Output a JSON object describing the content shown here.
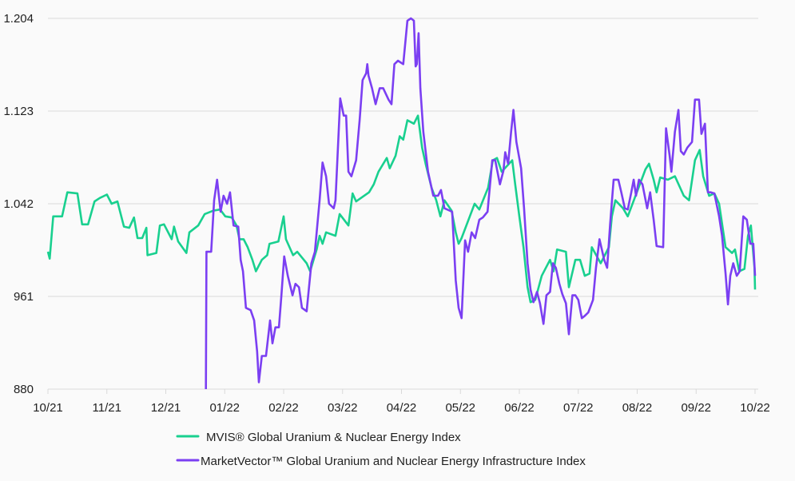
{
  "chart_data": {
    "type": "line",
    "title": "",
    "xlabel": "",
    "ylabel": "",
    "x_unit": "months since 10/21",
    "xlim": [
      0,
      12
    ],
    "ylim": [
      880,
      1204
    ],
    "grid": "horizontal",
    "legend_placement": "bottom-center",
    "x_tick_labels": [
      "10/21",
      "11/21",
      "12/21",
      "01/22",
      "02/22",
      "03/22",
      "04/22",
      "05/22",
      "06/22",
      "07/22",
      "08/22",
      "09/22",
      "10/22"
    ],
    "y_ticks": [
      {
        "value": 880,
        "label": "880"
      },
      {
        "value": 961,
        "label": "961"
      },
      {
        "value": 1042,
        "label": "1.042"
      },
      {
        "value": 1123,
        "label": "1.123"
      },
      {
        "value": 1204,
        "label": "1.204"
      }
    ],
    "series": [
      {
        "name": "MVIS® Global Uranium & Nuclear Energy Index",
        "color": "#19d08f",
        "points": [
          [
            0,
            1000
          ],
          [
            0.03,
            994
          ],
          [
            0.09,
            1031
          ],
          [
            0.24,
            1031
          ],
          [
            0.33,
            1052
          ],
          [
            0.5,
            1051
          ],
          [
            0.58,
            1024
          ],
          [
            0.68,
            1024
          ],
          [
            0.79,
            1044
          ],
          [
            0.88,
            1047
          ],
          [
            1.0,
            1050
          ],
          [
            1.08,
            1042
          ],
          [
            1.18,
            1044
          ],
          [
            1.29,
            1022
          ],
          [
            1.38,
            1021
          ],
          [
            1.46,
            1030
          ],
          [
            1.52,
            1012
          ],
          [
            1.6,
            1012
          ],
          [
            1.67,
            1021
          ],
          [
            1.69,
            997
          ],
          [
            1.84,
            999
          ],
          [
            1.9,
            1023
          ],
          [
            1.97,
            1024
          ],
          [
            2.1,
            1011
          ],
          [
            2.14,
            1022
          ],
          [
            2.21,
            1009
          ],
          [
            2.35,
            999
          ],
          [
            2.4,
            1017
          ],
          [
            2.55,
            1023
          ],
          [
            2.66,
            1033
          ],
          [
            2.81,
            1036
          ],
          [
            2.92,
            1037
          ],
          [
            3.01,
            1031
          ],
          [
            3.12,
            1030
          ],
          [
            3.2,
            1023
          ],
          [
            3.25,
            1011
          ],
          [
            3.32,
            1011
          ],
          [
            3.39,
            1004
          ],
          [
            3.47,
            993
          ],
          [
            3.53,
            983
          ],
          [
            3.63,
            993
          ],
          [
            3.72,
            997
          ],
          [
            3.76,
            1007
          ],
          [
            3.91,
            1009
          ],
          [
            4.0,
            1031
          ],
          [
            4.04,
            1011
          ],
          [
            4.16,
            997
          ],
          [
            4.23,
            1000
          ],
          [
            4.39,
            990
          ],
          [
            4.45,
            983
          ],
          [
            4.56,
            1002
          ],
          [
            4.61,
            1014
          ],
          [
            4.66,
            1007
          ],
          [
            4.72,
            1017
          ],
          [
            4.88,
            1014
          ],
          [
            4.95,
            1033
          ],
          [
            5.1,
            1023
          ],
          [
            5.17,
            1051
          ],
          [
            5.23,
            1044
          ],
          [
            5.45,
            1052
          ],
          [
            5.53,
            1059
          ],
          [
            5.61,
            1070
          ],
          [
            5.75,
            1082
          ],
          [
            5.8,
            1073
          ],
          [
            5.9,
            1084
          ],
          [
            5.97,
            1101
          ],
          [
            6.03,
            1098
          ],
          [
            6.1,
            1115
          ],
          [
            6.21,
            1112
          ],
          [
            6.28,
            1119
          ],
          [
            6.35,
            1091
          ],
          [
            6.41,
            1077
          ],
          [
            6.51,
            1056
          ],
          [
            6.59,
            1045
          ],
          [
            6.66,
            1031
          ],
          [
            6.73,
            1045
          ],
          [
            6.85,
            1036
          ],
          [
            6.92,
            1017
          ],
          [
            6.97,
            1007
          ],
          [
            7.02,
            1012
          ],
          [
            7.16,
            1031
          ],
          [
            7.24,
            1042
          ],
          [
            7.32,
            1037
          ],
          [
            7.47,
            1056
          ],
          [
            7.55,
            1080
          ],
          [
            7.62,
            1082
          ],
          [
            7.7,
            1070
          ],
          [
            7.88,
            1080
          ],
          [
            7.93,
            1059
          ],
          [
            8.0,
            1031
          ],
          [
            8.07,
            1004
          ],
          [
            8.14,
            969
          ],
          [
            8.19,
            956
          ],
          [
            8.27,
            958
          ],
          [
            8.38,
            979
          ],
          [
            8.52,
            993
          ],
          [
            8.58,
            983
          ],
          [
            8.64,
            1002
          ],
          [
            8.79,
            1000
          ],
          [
            8.84,
            969
          ],
          [
            8.95,
            993
          ],
          [
            9.03,
            993
          ],
          [
            9.11,
            979
          ],
          [
            9.19,
            981
          ],
          [
            9.23,
            1004
          ],
          [
            9.38,
            990
          ],
          [
            9.52,
            1004
          ],
          [
            9.57,
            1031
          ],
          [
            9.63,
            1045
          ],
          [
            9.76,
            1038
          ],
          [
            9.84,
            1031
          ],
          [
            9.98,
            1050
          ],
          [
            10.14,
            1072
          ],
          [
            10.2,
            1077
          ],
          [
            10.28,
            1063
          ],
          [
            10.33,
            1052
          ],
          [
            10.39,
            1065
          ],
          [
            10.52,
            1063
          ],
          [
            10.64,
            1066
          ],
          [
            10.79,
            1049
          ],
          [
            10.88,
            1045
          ],
          [
            10.98,
            1080
          ],
          [
            11.06,
            1089
          ],
          [
            11.12,
            1066
          ],
          [
            11.22,
            1049
          ],
          [
            11.31,
            1051
          ],
          [
            11.39,
            1042
          ],
          [
            11.5,
            1004
          ],
          [
            11.61,
            999
          ],
          [
            11.66,
            1002
          ],
          [
            11.73,
            983
          ],
          [
            11.82,
            985
          ],
          [
            11.88,
            1014
          ],
          [
            11.93,
            1023
          ],
          [
            11.99,
            986
          ],
          [
            12.0,
            967
          ]
        ]
      },
      {
        "name": "MarketVector™ Global Uranium and Nuclear Energy Infrastructure Index",
        "color": "#7b3ff2",
        "points": [
          [
            2.68,
            880
          ],
          [
            2.69,
            1000
          ],
          [
            2.77,
            1000
          ],
          [
            2.82,
            1045
          ],
          [
            2.87,
            1063
          ],
          [
            2.93,
            1035
          ],
          [
            2.98,
            1049
          ],
          [
            3.04,
            1042
          ],
          [
            3.09,
            1052
          ],
          [
            3.15,
            1023
          ],
          [
            3.23,
            1022
          ],
          [
            3.27,
            993
          ],
          [
            3.31,
            983
          ],
          [
            3.36,
            951
          ],
          [
            3.44,
            949
          ],
          [
            3.5,
            940
          ],
          [
            3.55,
            913
          ],
          [
            3.58,
            886
          ],
          [
            3.63,
            909
          ],
          [
            3.7,
            909
          ],
          [
            3.77,
            940
          ],
          [
            3.81,
            920
          ],
          [
            3.86,
            934
          ],
          [
            3.92,
            934
          ],
          [
            3.96,
            961
          ],
          [
            4.01,
            996
          ],
          [
            4.07,
            979
          ],
          [
            4.15,
            962
          ],
          [
            4.2,
            972
          ],
          [
            4.26,
            969
          ],
          [
            4.31,
            951
          ],
          [
            4.39,
            948
          ],
          [
            4.47,
            990
          ],
          [
            4.53,
            1000
          ],
          [
            4.61,
            1045
          ],
          [
            4.66,
            1078
          ],
          [
            4.72,
            1066
          ],
          [
            4.77,
            1042
          ],
          [
            4.85,
            1038
          ],
          [
            4.88,
            1045
          ],
          [
            4.96,
            1134
          ],
          [
            5.02,
            1119
          ],
          [
            5.06,
            1119
          ],
          [
            5.1,
            1070
          ],
          [
            5.15,
            1066
          ],
          [
            5.23,
            1080
          ],
          [
            5.29,
            1115
          ],
          [
            5.34,
            1150
          ],
          [
            5.4,
            1156
          ],
          [
            5.42,
            1164
          ],
          [
            5.44,
            1154
          ],
          [
            5.5,
            1143
          ],
          [
            5.56,
            1129
          ],
          [
            5.63,
            1143
          ],
          [
            5.69,
            1143
          ],
          [
            5.78,
            1133
          ],
          [
            5.83,
            1129
          ],
          [
            5.88,
            1164
          ],
          [
            5.94,
            1167
          ],
          [
            6.03,
            1164
          ],
          [
            6.1,
            1202
          ],
          [
            6.16,
            1204
          ],
          [
            6.21,
            1202
          ],
          [
            6.24,
            1162
          ],
          [
            6.26,
            1164
          ],
          [
            6.29,
            1191
          ],
          [
            6.32,
            1143
          ],
          [
            6.37,
            1105
          ],
          [
            6.45,
            1070
          ],
          [
            6.54,
            1049
          ],
          [
            6.62,
            1049
          ],
          [
            6.67,
            1054
          ],
          [
            6.73,
            1038
          ],
          [
            6.86,
            1035
          ],
          [
            6.92,
            975
          ],
          [
            6.97,
            951
          ],
          [
            7.02,
            942
          ],
          [
            7.08,
            1010
          ],
          [
            7.13,
            1000
          ],
          [
            7.19,
            1017
          ],
          [
            7.25,
            1012
          ],
          [
            7.32,
            1028
          ],
          [
            7.38,
            1030
          ],
          [
            7.46,
            1035
          ],
          [
            7.54,
            1080
          ],
          [
            7.59,
            1080
          ],
          [
            7.67,
            1059
          ],
          [
            7.73,
            1071
          ],
          [
            7.76,
            1087
          ],
          [
            7.81,
            1077
          ],
          [
            7.86,
            1105
          ],
          [
            7.9,
            1124
          ],
          [
            7.95,
            1096
          ],
          [
            8.03,
            1073
          ],
          [
            8.08,
            1038
          ],
          [
            8.14,
            990
          ],
          [
            8.19,
            967
          ],
          [
            8.24,
            956
          ],
          [
            8.3,
            965
          ],
          [
            8.35,
            955
          ],
          [
            8.41,
            937
          ],
          [
            8.46,
            962
          ],
          [
            8.52,
            965
          ],
          [
            8.57,
            990
          ],
          [
            8.62,
            986
          ],
          [
            8.68,
            972
          ],
          [
            8.73,
            963
          ],
          [
            8.79,
            955
          ],
          [
            8.84,
            928
          ],
          [
            8.9,
            962
          ],
          [
            8.95,
            962
          ],
          [
            9.0,
            958
          ],
          [
            9.06,
            942
          ],
          [
            9.11,
            944
          ],
          [
            9.17,
            947
          ],
          [
            9.25,
            958
          ],
          [
            9.3,
            986
          ],
          [
            9.36,
            1011
          ],
          [
            9.44,
            993
          ],
          [
            9.49,
            986
          ],
          [
            9.54,
            1024
          ],
          [
            9.6,
            1063
          ],
          [
            9.68,
            1063
          ],
          [
            9.73,
            1052
          ],
          [
            9.79,
            1038
          ],
          [
            9.84,
            1037
          ],
          [
            9.9,
            1052
          ],
          [
            9.94,
            1063
          ],
          [
            9.98,
            1049
          ],
          [
            10.03,
            1063
          ],
          [
            10.09,
            1059
          ],
          [
            10.17,
            1038
          ],
          [
            10.22,
            1052
          ],
          [
            10.28,
            1028
          ],
          [
            10.33,
            1005
          ],
          [
            10.44,
            1004
          ],
          [
            10.49,
            1108
          ],
          [
            10.55,
            1084
          ],
          [
            10.58,
            1070
          ],
          [
            10.64,
            1105
          ],
          [
            10.7,
            1124
          ],
          [
            10.74,
            1088
          ],
          [
            10.79,
            1085
          ],
          [
            10.85,
            1091
          ],
          [
            10.93,
            1096
          ],
          [
            10.98,
            1133
          ],
          [
            11.05,
            1133
          ],
          [
            11.09,
            1103
          ],
          [
            11.15,
            1112
          ],
          [
            11.2,
            1052
          ],
          [
            11.25,
            1052
          ],
          [
            11.31,
            1051
          ],
          [
            11.39,
            1031
          ],
          [
            11.44,
            1014
          ],
          [
            11.5,
            981
          ],
          [
            11.54,
            954
          ],
          [
            11.58,
            979
          ],
          [
            11.63,
            990
          ],
          [
            11.69,
            979
          ],
          [
            11.74,
            983
          ],
          [
            11.8,
            1031
          ],
          [
            11.86,
            1028
          ],
          [
            11.92,
            1007
          ],
          [
            11.97,
            1007
          ],
          [
            12.0,
            979
          ]
        ]
      }
    ]
  }
}
